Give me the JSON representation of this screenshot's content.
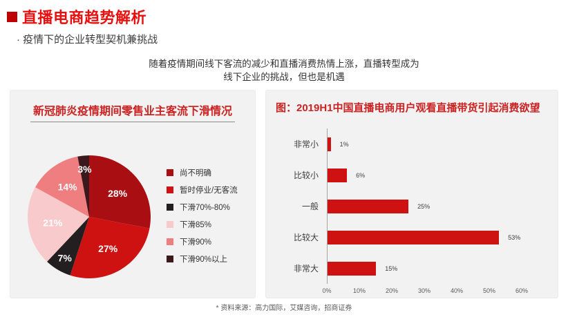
{
  "header": {
    "title": "直播电商趋势解析",
    "subtitle": "· 疫情下的企业转型契机兼挑战"
  },
  "intro": {
    "line1": "随着疫情期间线下客流的减少和直播消费热情上涨，直播转型成为",
    "line2": "线下企业的挑战，但也是机遇"
  },
  "source_note": "* 资料来源：高力国际，艾媒咨询，招商证券",
  "colors": {
    "accent_red": "#E8100F",
    "bullet_red": "#C00000",
    "panel_title_red": "#CC2222",
    "panel_bg": "#F2F2F2",
    "panel_border": "#EBEBEB",
    "bar_red": "#CE1212"
  },
  "chart_data": [
    {
      "type": "pie",
      "title": "新冠肺炎疫情期间零售业主客流下滑情况",
      "labels": [
        "尚不明确",
        "暂时停业/无客流",
        "下滑70%-80%",
        "下滑85%",
        "下滑90%",
        "下滑90%以上"
      ],
      "values": [
        28,
        27,
        7,
        21,
        14,
        3
      ],
      "value_labels": [
        "28%",
        "27%",
        "7%",
        "21%",
        "14%",
        "3%"
      ],
      "colors": [
        "#A90E13",
        "#CE1212",
        "#231F20",
        "#F8CACC",
        "#EF7E80",
        "#3B181C"
      ],
      "start_angle": "top",
      "direction": "clockwise",
      "legend_position": "right"
    },
    {
      "type": "bar",
      "orientation": "horizontal",
      "title": "图：2019H1中国直播电商用户观看直播带货引起消费欲望",
      "categories": [
        "非常小",
        "比较小",
        "一般",
        "比较大",
        "非常大"
      ],
      "values": [
        1,
        6,
        25,
        53,
        15
      ],
      "value_labels": [
        "1%",
        "6%",
        "25%",
        "53%",
        "15%"
      ],
      "xlim": [
        0,
        60
      ],
      "x_ticks": [
        "0%",
        "10%",
        "20%",
        "30%",
        "40%",
        "50%",
        "60%"
      ],
      "bar_color": "#CE1212",
      "grid": false,
      "xlabel": "",
      "ylabel": ""
    }
  ]
}
